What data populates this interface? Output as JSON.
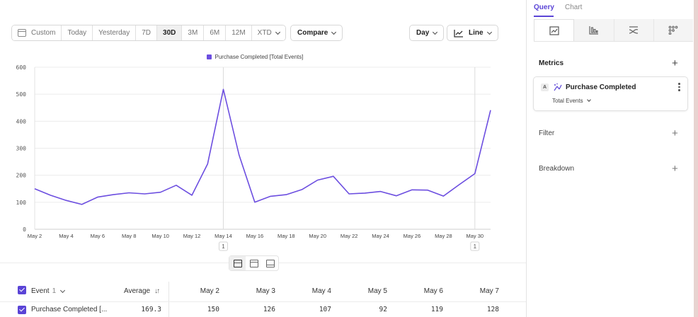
{
  "toolbar": {
    "date_buttons": [
      {
        "label": "Custom",
        "active": false
      },
      {
        "label": "Today",
        "active": false
      },
      {
        "label": "Yesterday",
        "active": false
      },
      {
        "label": "7D",
        "active": false
      },
      {
        "label": "30D",
        "active": true
      },
      {
        "label": "3M",
        "active": false
      },
      {
        "label": "6M",
        "active": false
      },
      {
        "label": "12M",
        "active": false
      },
      {
        "label": "XTD",
        "active": false
      }
    ],
    "compare_label": "Compare",
    "interval_label": "Day",
    "chart_type_label": "Line"
  },
  "chart_data": {
    "type": "line",
    "legend": "Purchase Completed [Total Events]",
    "series": [
      {
        "name": "Purchase Completed [Total Events]",
        "color": "#6c4ee0",
        "values": [
          150,
          126,
          107,
          92,
          119,
          128,
          135,
          131,
          137,
          163,
          126,
          242,
          518,
          275,
          100,
          122,
          128,
          147,
          182,
          196,
          131,
          134,
          140,
          124,
          146,
          145,
          123,
          165,
          206,
          441
        ]
      }
    ],
    "x_tick_labels": [
      "May 2",
      "May 4",
      "May 6",
      "May 8",
      "May 10",
      "May 12",
      "May 14",
      "May 16",
      "May 18",
      "May 20",
      "May 22",
      "May 24",
      "May 26",
      "May 28",
      "May 30"
    ],
    "y_ticks": [
      0,
      100,
      200,
      300,
      400,
      500,
      600
    ],
    "ylim": [
      0,
      600
    ],
    "annotations": [
      {
        "date": "May 14",
        "label": "1"
      },
      {
        "date": "May 30",
        "label": "1"
      }
    ],
    "grid": true
  },
  "table": {
    "event_header": "Event",
    "event_count": "1",
    "average_header": "Average",
    "date_headers": [
      "May 2",
      "May 3",
      "May 4",
      "May 5",
      "May 6",
      "May 7"
    ],
    "row": {
      "name": "Purchase Completed [...",
      "average": "169.3",
      "values": [
        "150",
        "126",
        "107",
        "92",
        "119",
        "128"
      ]
    }
  },
  "panel": {
    "tabs": [
      {
        "label": "Query",
        "active": true
      },
      {
        "label": "Chart",
        "active": false
      }
    ],
    "viz_icons": [
      "insights-chart-icon",
      "funnel-bars-icon",
      "flows-icon",
      "retention-grid-icon"
    ],
    "metrics_title": "Metrics",
    "metric": {
      "badge": "A",
      "name": "Purchase Completed",
      "measure": "Total Events"
    },
    "filter_title": "Filter",
    "breakdown_title": "Breakdown"
  }
}
